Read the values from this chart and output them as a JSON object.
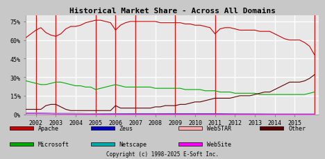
{
  "title": "Historical Market Share - Across All Domains",
  "copyright": "Copyright (c) 1998-2025 E-Soft Inc.",
  "xlim": [
    2001.5,
    2016.2
  ],
  "ylim": [
    0,
    80
  ],
  "yticks": [
    0,
    15,
    30,
    45,
    60,
    75
  ],
  "ytick_labels": [
    "0%",
    "15%",
    "30%",
    "45%",
    "60%",
    "75%"
  ],
  "xticks": [
    2002,
    2003,
    2004,
    2005,
    2006,
    2007,
    2008,
    2009,
    2010,
    2011,
    2012,
    2013,
    2014,
    2015
  ],
  "bg_color": "#c8c8c8",
  "plot_bg_color": "#e8e8e8",
  "grid_color": "#ffffff",
  "red_lines": [
    2002.0,
    2003.0,
    2005.0,
    2006.0,
    2007.0,
    2009.0,
    2011.0,
    2016.0
  ],
  "series": {
    "Apache": {
      "color": "#cc0000",
      "data_x": [
        2001.5,
        2001.75,
        2002.0,
        2002.25,
        2002.5,
        2002.75,
        2003.0,
        2003.25,
        2003.5,
        2003.75,
        2004.0,
        2004.25,
        2004.5,
        2004.75,
        2005.0,
        2005.25,
        2005.5,
        2005.75,
        2006.0,
        2006.25,
        2006.5,
        2006.75,
        2007.0,
        2007.25,
        2007.5,
        2007.75,
        2008.0,
        2008.25,
        2008.5,
        2008.75,
        2009.0,
        2009.25,
        2009.5,
        2009.75,
        2010.0,
        2010.25,
        2010.5,
        2010.75,
        2011.0,
        2011.25,
        2011.5,
        2011.75,
        2012.0,
        2012.25,
        2012.5,
        2012.75,
        2013.0,
        2013.25,
        2013.5,
        2013.75,
        2014.0,
        2014.25,
        2014.5,
        2014.75,
        2015.0,
        2015.25,
        2015.5,
        2015.75,
        2016.0
      ],
      "data_y": [
        62,
        65,
        68,
        70,
        66,
        64,
        63,
        65,
        69,
        71,
        71,
        72,
        74,
        75,
        76,
        76,
        75,
        74,
        68,
        72,
        74,
        75,
        75,
        75,
        75,
        75,
        75,
        74,
        74,
        74,
        74,
        74,
        73,
        73,
        72,
        72,
        71,
        70,
        65,
        69,
        70,
        70,
        69,
        68,
        68,
        68,
        68,
        67,
        67,
        67,
        65,
        63,
        61,
        60,
        60,
        60,
        58,
        55,
        48
      ]
    },
    "Microsoft": {
      "color": "#00aa00",
      "data_x": [
        2001.5,
        2001.75,
        2002.0,
        2002.25,
        2002.5,
        2002.75,
        2003.0,
        2003.25,
        2003.5,
        2003.75,
        2004.0,
        2004.25,
        2004.5,
        2004.75,
        2005.0,
        2005.25,
        2005.5,
        2005.75,
        2006.0,
        2006.25,
        2006.5,
        2006.75,
        2007.0,
        2007.25,
        2007.5,
        2007.75,
        2008.0,
        2008.25,
        2008.5,
        2008.75,
        2009.0,
        2009.25,
        2009.5,
        2009.75,
        2010.0,
        2010.25,
        2010.5,
        2010.75,
        2011.0,
        2011.25,
        2011.5,
        2011.75,
        2012.0,
        2012.25,
        2012.5,
        2012.75,
        2013.0,
        2013.25,
        2013.5,
        2013.75,
        2014.0,
        2014.25,
        2014.5,
        2014.75,
        2015.0,
        2015.25,
        2015.5,
        2015.75,
        2016.0
      ],
      "data_y": [
        27,
        26,
        25,
        24,
        24,
        25,
        26,
        26,
        25,
        24,
        23,
        23,
        22,
        22,
        20,
        21,
        22,
        23,
        24,
        23,
        22,
        22,
        22,
        22,
        22,
        22,
        21,
        21,
        21,
        21,
        21,
        21,
        20,
        20,
        20,
        20,
        19,
        19,
        19,
        18,
        18,
        18,
        17,
        17,
        17,
        17,
        17,
        16,
        16,
        16,
        16,
        16,
        16,
        16,
        16,
        16,
        16,
        17,
        18
      ]
    },
    "Other": {
      "color": "#5c0000",
      "data_x": [
        2001.5,
        2001.75,
        2002.0,
        2002.25,
        2002.5,
        2002.75,
        2003.0,
        2003.25,
        2003.5,
        2003.75,
        2004.0,
        2004.25,
        2004.5,
        2004.75,
        2005.0,
        2005.25,
        2005.5,
        2005.75,
        2006.0,
        2006.25,
        2006.5,
        2006.75,
        2007.0,
        2007.25,
        2007.5,
        2007.75,
        2008.0,
        2008.25,
        2008.5,
        2008.75,
        2009.0,
        2009.25,
        2009.5,
        2009.75,
        2010.0,
        2010.25,
        2010.5,
        2010.75,
        2011.0,
        2011.25,
        2011.5,
        2011.75,
        2012.0,
        2012.25,
        2012.5,
        2012.75,
        2013.0,
        2013.25,
        2013.5,
        2013.75,
        2014.0,
        2014.25,
        2014.5,
        2014.75,
        2015.0,
        2015.25,
        2015.5,
        2015.75,
        2016.0
      ],
      "data_y": [
        4,
        4,
        4,
        4,
        7,
        8,
        8,
        6,
        4,
        3,
        3,
        3,
        3,
        3,
        3,
        3,
        3,
        3,
        7,
        5,
        5,
        5,
        5,
        5,
        5,
        5,
        6,
        6,
        7,
        7,
        7,
        8,
        8,
        9,
        10,
        10,
        11,
        12,
        13,
        13,
        13,
        13,
        14,
        15,
        15,
        15,
        16,
        17,
        18,
        18,
        20,
        22,
        24,
        26,
        26,
        26,
        27,
        29,
        32
      ]
    },
    "Zeus": {
      "color": "#0000cc",
      "data_x": [
        2001.5,
        2002.0,
        2003.0,
        2004.0,
        2005.0,
        2006.0,
        2007.0,
        2008.0,
        2009.0,
        2010.0,
        2011.0,
        2012.0,
        2013.0,
        2014.0,
        2015.0,
        2016.0
      ],
      "data_y": [
        1,
        1,
        0.5,
        0.5,
        0.5,
        0.5,
        0.5,
        0.5,
        0.5,
        0.5,
        0.5,
        0.3,
        0.2,
        0.1,
        0.1,
        0.1
      ]
    },
    "Netscape": {
      "color": "#00aaaa",
      "data_x": [
        2001.5,
        2002.0,
        2003.0,
        2004.0,
        2005.0,
        2006.0,
        2007.0,
        2008.0,
        2009.0,
        2010.0,
        2011.0,
        2012.0,
        2013.0,
        2014.0,
        2015.0,
        2016.0
      ],
      "data_y": [
        1,
        1,
        0.8,
        0.8,
        0.5,
        0.3,
        0.2,
        0.2,
        0.1,
        0.1,
        0.1,
        0.1,
        0.1,
        0.1,
        0.1,
        0.1
      ]
    },
    "WebSTAR": {
      "color": "#ffaaaa",
      "data_x": [
        2001.5,
        2002.0,
        2003.0,
        2004.0,
        2005.0,
        2006.0,
        2007.0,
        2008.0,
        2009.0,
        2010.0,
        2011.0,
        2012.0,
        2013.0,
        2014.0,
        2015.0,
        2016.0
      ],
      "data_y": [
        0.8,
        0.8,
        0.5,
        0.5,
        0.3,
        0.2,
        0.2,
        0.2,
        0.2,
        0.2,
        0.2,
        0.2,
        0.1,
        0.1,
        0.1,
        0.1
      ]
    },
    "WebSite": {
      "color": "#ff00ff",
      "data_x": [
        2001.5,
        2002.0,
        2003.0,
        2004.0,
        2005.0,
        2006.0,
        2007.0,
        2008.0,
        2009.0,
        2010.0,
        2011.0,
        2012.0,
        2013.0,
        2014.0,
        2015.0,
        2016.0
      ],
      "data_y": [
        0.5,
        0.5,
        0.3,
        0.2,
        0.1,
        0.1,
        0.1,
        0.1,
        0.1,
        0.1,
        0.1,
        0.1,
        0.1,
        0.1,
        0.1,
        0.1
      ]
    }
  },
  "legend": [
    {
      "label": "Apache",
      "color": "#cc0000"
    },
    {
      "label": "Zeus",
      "color": "#0000cc"
    },
    {
      "label": "WebSTAR",
      "color": "#ffaaaa"
    },
    {
      "label": "Other",
      "color": "#5c0000"
    },
    {
      "label": "Microsoft",
      "color": "#00aa00"
    },
    {
      "label": "Netscape",
      "color": "#00aaaa"
    },
    {
      "label": "WebSite",
      "color": "#ff00ff"
    }
  ]
}
